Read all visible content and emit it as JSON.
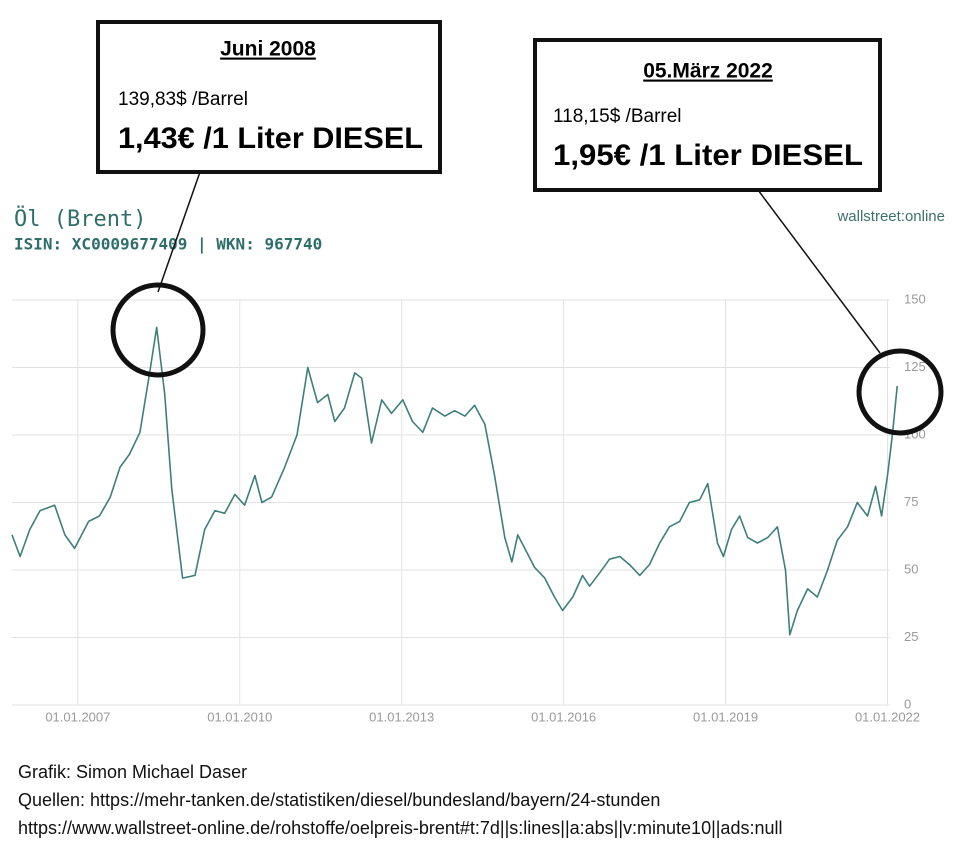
{
  "chart_data": {
    "type": "line",
    "title": "Öl (Brent)",
    "subtitle": "ISIN: XC0009677409 | WKN: 967740",
    "brand": "wallstreet:online",
    "color": "#3f7f7b",
    "grid": true,
    "xlim": [
      2005.78,
      2022.25
    ],
    "xticks": [
      {
        "value": 2007,
        "label": "01.01.2007"
      },
      {
        "value": 2010,
        "label": "01.01.2010"
      },
      {
        "value": 2013,
        "label": "01.01.2013"
      },
      {
        "value": 2016,
        "label": "01.01.2016"
      },
      {
        "value": 2019,
        "label": "01.01.2019"
      },
      {
        "value": 2022,
        "label": "01.01.2022"
      }
    ],
    "ylim": [
      0,
      150
    ],
    "yticks": [
      0,
      25,
      50,
      75,
      100,
      125,
      150
    ],
    "x": [
      2005.78,
      2005.93,
      2006.11,
      2006.3,
      2006.57,
      2006.76,
      2006.94,
      2007.2,
      2007.4,
      2007.6,
      2007.78,
      2007.96,
      2008.15,
      2008.33,
      2008.46,
      2008.61,
      2008.74,
      2008.94,
      2009.17,
      2009.35,
      2009.54,
      2009.72,
      2009.91,
      2010.09,
      2010.28,
      2010.41,
      2010.59,
      2010.83,
      2011.06,
      2011.26,
      2011.44,
      2011.63,
      2011.76,
      2011.94,
      2012.13,
      2012.26,
      2012.44,
      2012.63,
      2012.81,
      2013.02,
      2013.2,
      2013.39,
      2013.57,
      2013.8,
      2013.98,
      2014.17,
      2014.35,
      2014.54,
      2014.72,
      2014.91,
      2015.04,
      2015.15,
      2015.28,
      2015.46,
      2015.65,
      2015.83,
      2015.98,
      2016.17,
      2016.35,
      2016.48,
      2016.67,
      2016.85,
      2017.04,
      2017.22,
      2017.41,
      2017.59,
      2017.78,
      2017.96,
      2018.15,
      2018.33,
      2018.52,
      2018.67,
      2018.85,
      2018.96,
      2019.11,
      2019.26,
      2019.41,
      2019.59,
      2019.78,
      2019.96,
      2020.11,
      2020.19,
      2020.33,
      2020.52,
      2020.7,
      2020.89,
      2021.07,
      2021.26,
      2021.44,
      2021.63,
      2021.78,
      2021.89,
      2022.0,
      2022.09,
      2022.18
    ],
    "values": [
      63,
      55,
      65,
      72,
      74,
      63,
      58,
      68,
      70,
      77,
      88,
      93,
      101,
      123,
      139.83,
      115,
      80,
      47,
      48,
      65,
      72,
      71,
      78,
      74,
      85,
      75,
      77,
      88,
      100,
      125,
      112,
      115,
      105,
      110,
      123,
      121,
      97,
      113,
      108,
      113,
      105,
      101,
      110,
      107,
      109,
      107,
      111,
      104,
      85,
      62,
      53,
      63,
      58,
      51,
      47,
      40,
      35,
      40,
      48,
      44,
      49,
      54,
      55,
      52,
      48,
      52,
      60,
      66,
      68,
      75,
      76,
      82,
      60,
      55,
      65,
      70,
      62,
      60,
      62,
      66,
      50,
      26,
      35,
      43,
      40,
      50,
      61,
      66,
      75,
      70,
      81,
      70,
      85,
      100,
      118.15
    ],
    "annotations": [
      {
        "title": "Juni 2008",
        "price": "139,83$ /Barrel",
        "diesel": "1,43€ /1 Liter DIESEL"
      },
      {
        "title": "05.März 2022",
        "price": "118,15$ /Barrel",
        "diesel": "1,95€ /1 Liter DIESEL"
      }
    ],
    "credits": [
      "Grafik: Simon Michael Daser",
      "Quellen: https://mehr-tanken.de/statistiken/diesel/bundesland/bayern/24-stunden",
      "https://www.wallstreet-online.de/rohstoffe/oelpreis-brent#t:7d||s:lines||a:abs||v:minute10||ads:null"
    ]
  }
}
